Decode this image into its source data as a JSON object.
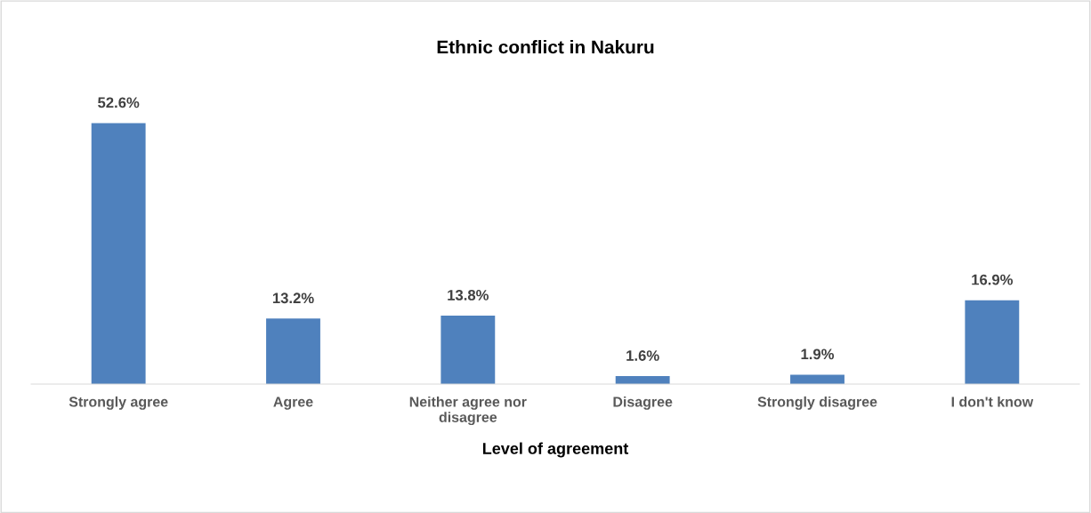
{
  "chart_data": {
    "type": "bar",
    "title": "Ethnic conflict in Nakuru",
    "xlabel": "Level of agreement",
    "categories": [
      "Strongly agree",
      "Agree",
      "Neither agree nor disagree",
      "Disagree",
      "Strongly disagree",
      "I don't know"
    ],
    "values": [
      52.6,
      13.2,
      13.8,
      1.6,
      1.9,
      16.9
    ],
    "value_labels": [
      "52.6%",
      "13.2%",
      "13.8%",
      "1.6%",
      "1.9%",
      "16.9%"
    ],
    "color": "#4f81bd",
    "tick_labels": "x",
    "grid": false,
    "legend": false
  }
}
